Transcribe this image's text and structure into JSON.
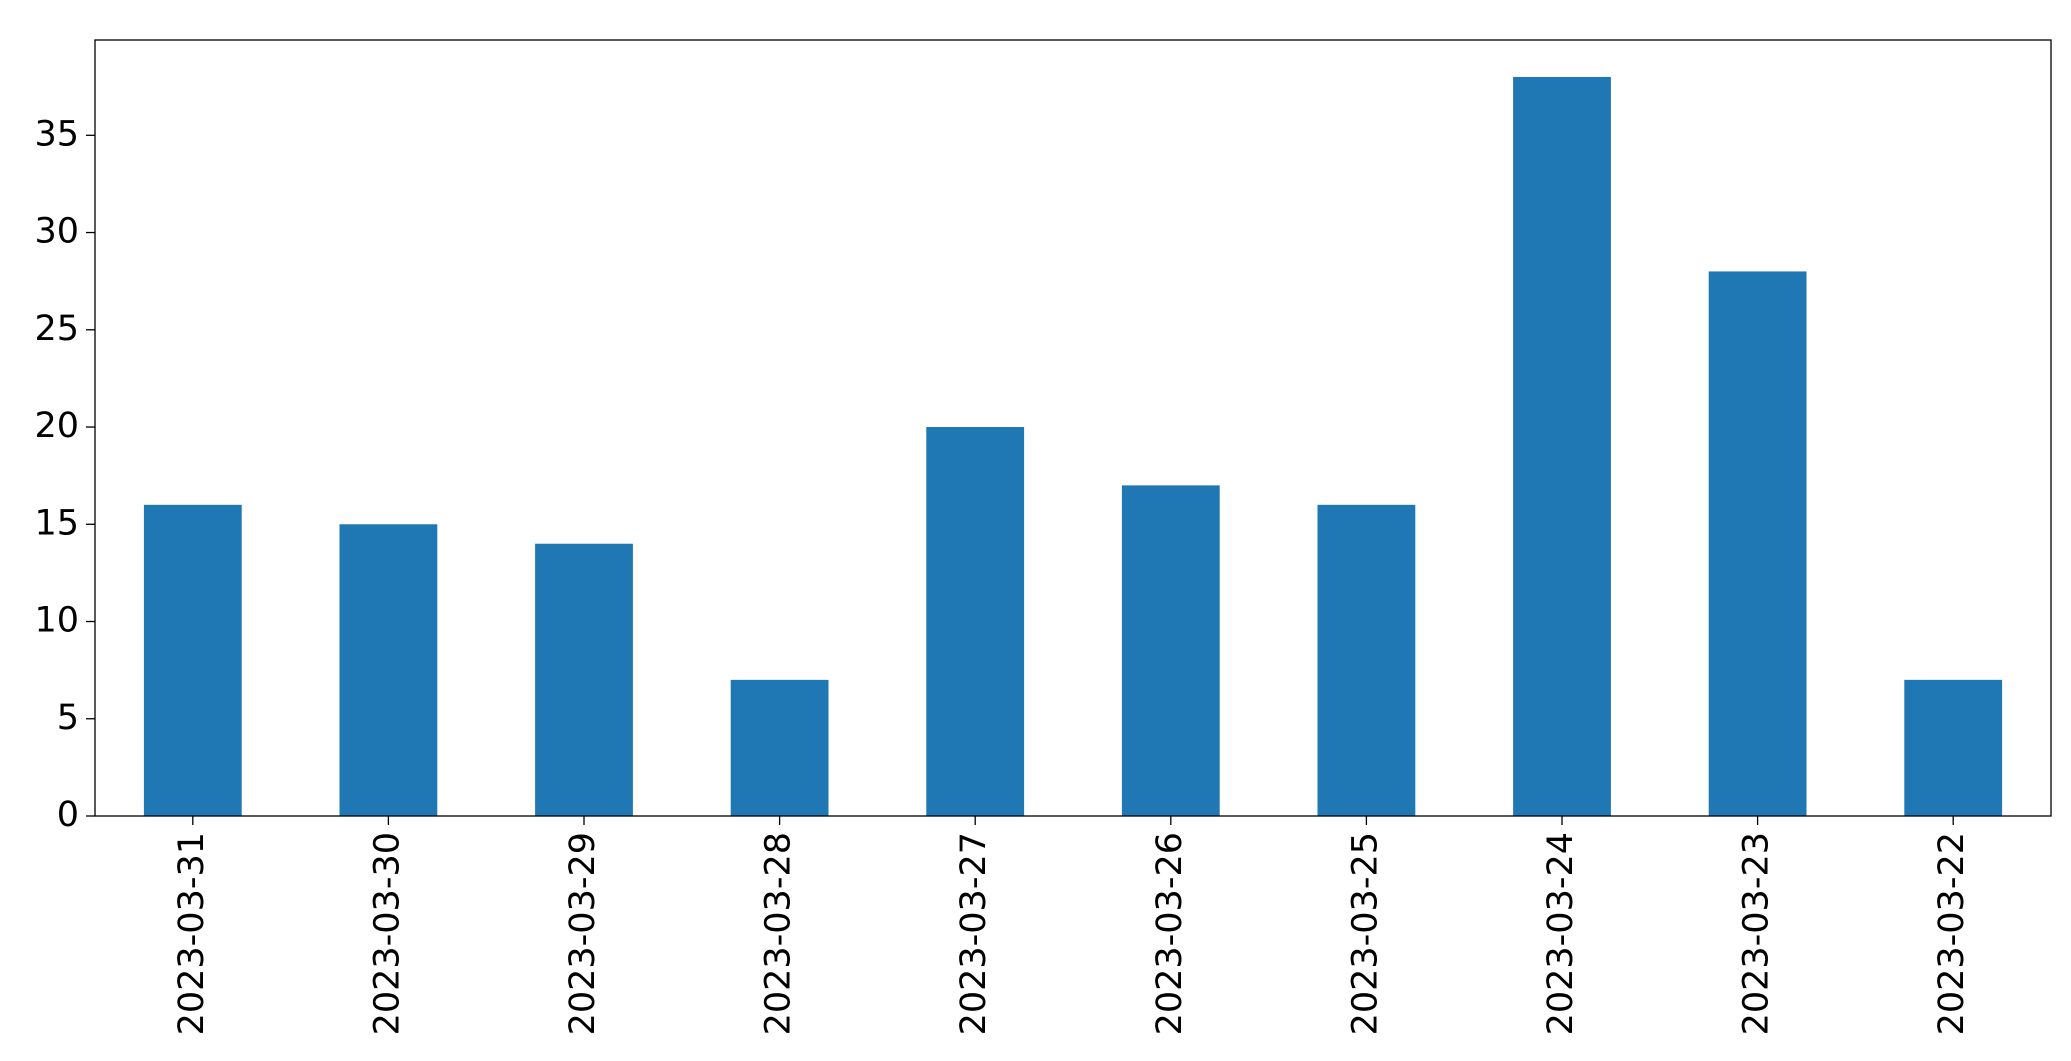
{
  "chart_data": {
    "type": "bar",
    "categories": [
      "2023-03-31",
      "2023-03-30",
      "2023-03-29",
      "2023-03-28",
      "2023-03-27",
      "2023-03-26",
      "2023-03-25",
      "2023-03-24",
      "2023-03-23",
      "2023-03-22"
    ],
    "values": [
      16,
      15,
      14,
      7,
      20,
      17,
      16,
      38,
      28,
      7
    ],
    "color": "#1f77b4",
    "ylim": [
      0,
      39.9
    ],
    "yticks": [
      0,
      5,
      10,
      15,
      20,
      25,
      30,
      35
    ],
    "grid": false
  }
}
